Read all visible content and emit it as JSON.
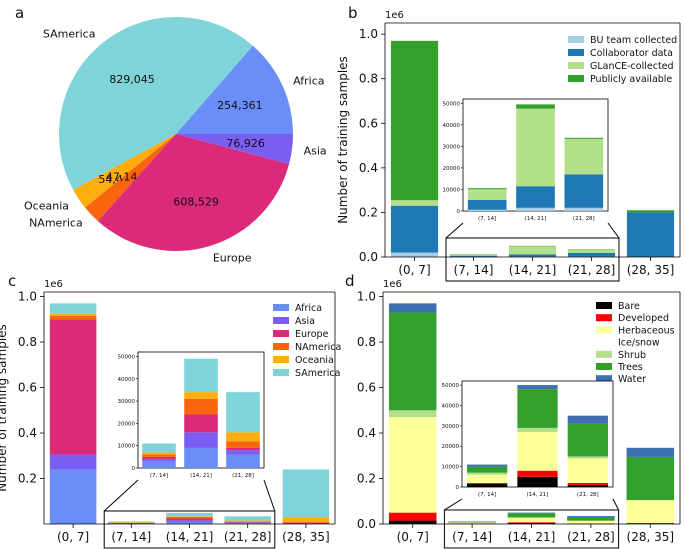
{
  "panels": {
    "a": "a",
    "b": "b",
    "c": "c",
    "d": "d"
  },
  "chart_data": [
    {
      "id": "a",
      "type": "pie",
      "labels": [
        "Africa",
        "SAmerica",
        "Oceania",
        "NAmerica",
        "Europe",
        "Asia"
      ],
      "values": [
        254361,
        829045,
        54407,
        47144,
        608529,
        76926
      ],
      "value_labels": [
        "254,361",
        "829,045",
        "54,407",
        "47,144",
        "608,529",
        "76,926"
      ],
      "colors": [
        "#6a8ef7",
        "#7fd4da",
        "#fdae0d",
        "#f7650f",
        "#dc2a7b",
        "#7b5df2"
      ],
      "start_angle": 0,
      "direction": "counterclockwise"
    },
    {
      "id": "b",
      "type": "bar",
      "stacked": true,
      "categories": [
        "(0, 7]",
        "(7, 14]",
        "(14, 21]",
        "(21, 28]",
        "(28, 35]"
      ],
      "ylabel": "Number of training samples",
      "scale_label": "1e6",
      "yticks": [
        "0.0",
        "0.2",
        "0.4",
        "0.6",
        "0.8",
        "1.0"
      ],
      "ylim": [
        0,
        1.05
      ],
      "series": [
        {
          "name": "BU team collected",
          "color": "#a6cee3",
          "values": [
            0.02,
            0.001,
            0.002,
            0.002,
            0.0
          ]
        },
        {
          "name": "Collaborator data",
          "color": "#1f78b4",
          "values": [
            0.21,
            0.005,
            0.01,
            0.016,
            0.2
          ]
        },
        {
          "name": "GLanCE-collected",
          "color": "#b2df8a",
          "values": [
            0.025,
            0.005,
            0.036,
            0.016,
            0.0
          ]
        },
        {
          "name": "Publicly available",
          "color": "#33a02c",
          "values": [
            0.715,
            0.0005,
            0.002,
            0.0005,
            0.01
          ]
        }
      ],
      "inset": {
        "categories": [
          "(7, 14]",
          "(14, 21]",
          "(21, 28]"
        ],
        "yticks": [
          "0",
          "10000",
          "20000",
          "30000",
          "40000",
          "50000"
        ],
        "ylim": [
          0,
          52000
        ],
        "series": [
          {
            "name": "BU team collected",
            "values": [
              600,
              1500,
              1500
            ]
          },
          {
            "name": "Collaborator data",
            "values": [
              4500,
              10000,
              15500
            ]
          },
          {
            "name": "GLanCE-collected",
            "values": [
              5000,
              36000,
              16500
            ]
          },
          {
            "name": "Publicly available",
            "values": [
              500,
              2000,
              500
            ]
          }
        ]
      }
    },
    {
      "id": "c",
      "type": "bar",
      "stacked": true,
      "categories": [
        "(0, 7]",
        "(7, 14]",
        "(14, 21]",
        "(21, 28]",
        "(28, 35]"
      ],
      "ylabel": "Number of training samples",
      "scale_label": "1e6",
      "yticks": [
        "0.2",
        "0.4",
        "0.6",
        "0.8",
        "1.0"
      ],
      "ylim": [
        0,
        1.02
      ],
      "series": [
        {
          "name": "Africa",
          "color": "#6a8ef7",
          "values": [
            0.24,
            0.003,
            0.009,
            0.006,
            0.0
          ]
        },
        {
          "name": "Asia",
          "color": "#7b5df2",
          "values": [
            0.065,
            0.001,
            0.007,
            0.002,
            0.0
          ]
        },
        {
          "name": "Europe",
          "color": "#dc2a7b",
          "values": [
            0.595,
            0.001,
            0.008,
            0.001,
            0.005
          ]
        },
        {
          "name": "NAmerica",
          "color": "#f7650f",
          "values": [
            0.015,
            0.001,
            0.007,
            0.003,
            0.005
          ]
        },
        {
          "name": "Oceania",
          "color": "#fdae0d",
          "values": [
            0.01,
            0.001,
            0.003,
            0.004,
            0.02
          ]
        },
        {
          "name": "SAmerica",
          "color": "#7fd4da",
          "values": [
            0.045,
            0.004,
            0.015,
            0.018,
            0.21
          ]
        }
      ],
      "inset": {
        "categories": [
          "(7, 14]",
          "(14, 21]",
          "(21, 28]"
        ],
        "yticks": [
          "0",
          "10000",
          "20000",
          "30000",
          "40000",
          "50000"
        ],
        "ylim": [
          0,
          52000
        ],
        "series": [
          {
            "name": "Africa",
            "values": [
              3000,
              9000,
              6000
            ]
          },
          {
            "name": "Asia",
            "values": [
              1000,
              7000,
              2000
            ]
          },
          {
            "name": "Europe",
            "values": [
              1000,
              8000,
              1000
            ]
          },
          {
            "name": "NAmerica",
            "values": [
              1000,
              7000,
              3000
            ]
          },
          {
            "name": "Oceania",
            "values": [
              1000,
              3000,
              4000
            ]
          },
          {
            "name": "SAmerica",
            "values": [
              4000,
              15000,
              18000
            ]
          }
        ]
      }
    },
    {
      "id": "d",
      "type": "bar",
      "stacked": true,
      "categories": [
        "(0, 7]",
        "(7, 14]",
        "(14, 21]",
        "(21, 28]",
        "(28, 35]"
      ],
      "ylabel": "",
      "scale_label": "1e6",
      "yticks": [
        "0.0",
        "0.2",
        "0.4",
        "0.6",
        "0.8",
        "1.0"
      ],
      "ylim": [
        0,
        1.02
      ],
      "series": [
        {
          "name": "Bare",
          "color": "#000000",
          "values": [
            0.015,
            0.0015,
            0.005,
            0.001,
            0.0
          ]
        },
        {
          "name": "Developed",
          "color": "#ff0000",
          "values": [
            0.035,
            0.0005,
            0.003,
            0.001,
            0.005
          ]
        },
        {
          "name": "Herbaceous",
          "color": "#ffff99",
          "values": [
            0.42,
            0.004,
            0.019,
            0.012,
            0.1
          ]
        },
        {
          "name": "Ice/snow",
          "color": "#ffffff",
          "values": [
            0.0,
            0.0,
            0.0,
            0.0,
            0.0
          ]
        },
        {
          "name": "Shrub",
          "color": "#b2df8a",
          "values": [
            0.03,
            0.001,
            0.002,
            0.001,
            0.0
          ]
        },
        {
          "name": "Trees",
          "color": "#33a02c",
          "values": [
            0.43,
            0.003,
            0.019,
            0.016,
            0.19
          ]
        },
        {
          "name": "Water",
          "color": "#3e6fb0",
          "values": [
            0.04,
            0.001,
            0.002,
            0.004,
            0.04
          ]
        }
      ],
      "inset": {
        "categories": [
          "(7, 14]",
          "(14, 21]",
          "(21, 28]"
        ],
        "yticks": [
          "0",
          "10000",
          "20000",
          "30000",
          "40000",
          "50000"
        ],
        "ylim": [
          0,
          52000
        ],
        "series": [
          {
            "name": "Bare",
            "values": [
              1500,
              5000,
              1000
            ]
          },
          {
            "name": "Developed",
            "values": [
              500,
              3000,
              1000
            ]
          },
          {
            "name": "Herbaceous",
            "values": [
              4000,
              19000,
              12000
            ]
          },
          {
            "name": "Ice/snow",
            "values": [
              0,
              0,
              0
            ]
          },
          {
            "name": "Shrub",
            "values": [
              1000,
              2000,
              1000
            ]
          },
          {
            "name": "Trees",
            "values": [
              3000,
              19000,
              16000
            ]
          },
          {
            "name": "Water",
            "values": [
              1000,
              2000,
              4000
            ]
          }
        ]
      }
    }
  ]
}
